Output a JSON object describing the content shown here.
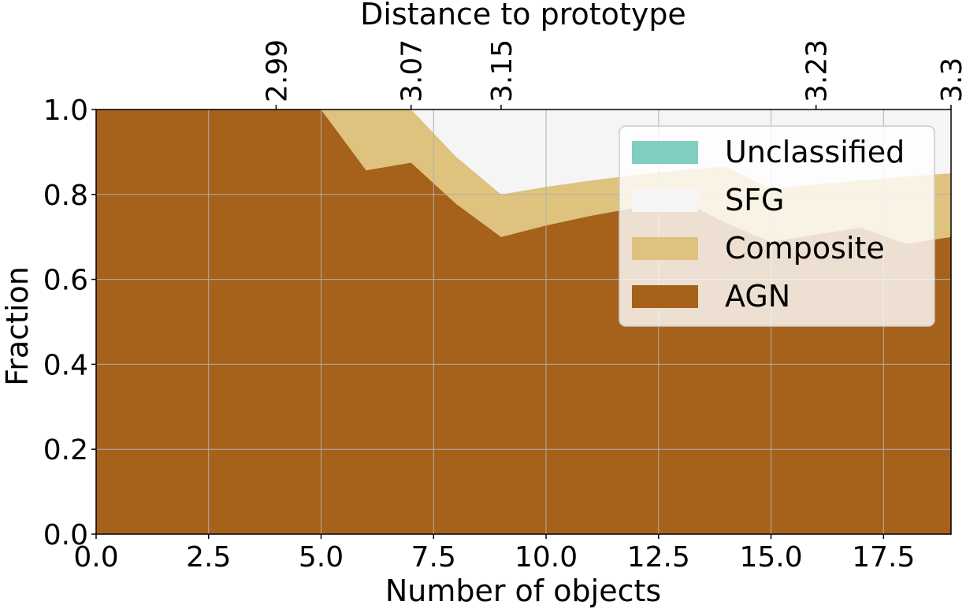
{
  "chart_data": {
    "type": "area",
    "stacked": true,
    "x": [
      0,
      1,
      2,
      3,
      4,
      5,
      6,
      7,
      8,
      9,
      10,
      11,
      12,
      13,
      14,
      15,
      16,
      17,
      18,
      19
    ],
    "series": [
      {
        "name": "AGN",
        "color": "#a6611a",
        "values": [
          1.0,
          1.0,
          1.0,
          1.0,
          1.0,
          1.0,
          0.857,
          0.875,
          0.778,
          0.7,
          0.727,
          0.75,
          0.769,
          0.786,
          0.733,
          0.688,
          0.706,
          0.722,
          0.684,
          0.7
        ]
      },
      {
        "name": "Composite",
        "color": "#dfc27d",
        "values": [
          0.0,
          0.0,
          0.0,
          0.0,
          0.0,
          0.0,
          0.143,
          0.125,
          0.111,
          0.1,
          0.091,
          0.083,
          0.077,
          0.071,
          0.133,
          0.125,
          0.118,
          0.111,
          0.158,
          0.15
        ]
      },
      {
        "name": "SFG",
        "color": "#f5f5f5",
        "values": [
          0.0,
          0.0,
          0.0,
          0.0,
          0.0,
          0.0,
          0.0,
          0.0,
          0.111,
          0.2,
          0.182,
          0.167,
          0.154,
          0.143,
          0.134,
          0.187,
          0.176,
          0.167,
          0.158,
          0.15
        ]
      },
      {
        "name": "Unclassified",
        "color": "#80cdc1",
        "values": [
          0,
          0,
          0,
          0,
          0,
          0,
          0,
          0,
          0,
          0,
          0,
          0,
          0,
          0,
          0,
          0,
          0,
          0,
          0,
          0
        ]
      }
    ],
    "xlim": [
      0,
      19
    ],
    "ylim": [
      0,
      1.0
    ],
    "xticks": [
      0.0,
      2.5,
      5.0,
      7.5,
      10.0,
      12.5,
      15.0,
      17.5
    ],
    "xtick_labels": [
      "0.0",
      "2.5",
      "5.0",
      "7.5",
      "10.0",
      "12.5",
      "15.0",
      "17.5"
    ],
    "yticks": [
      0.0,
      0.2,
      0.4,
      0.6,
      0.8,
      1.0
    ],
    "ytick_labels": [
      "0.0",
      "0.2",
      "0.4",
      "0.6",
      "0.8",
      "1.0"
    ],
    "top_axis": {
      "label": "Distance to prototype",
      "ticks": [
        {
          "x": 4,
          "label": "2.99"
        },
        {
          "x": 7,
          "label": "3.07"
        },
        {
          "x": 9,
          "label": "3.15"
        },
        {
          "x": 16,
          "label": "3.23"
        },
        {
          "x": 19,
          "label": "3.3"
        }
      ]
    },
    "xlabel": "Number of objects",
    "ylabel": "Fraction",
    "grid": true,
    "legend": {
      "placement": "upper-right",
      "order": [
        "Unclassified",
        "SFG",
        "Composite",
        "AGN"
      ]
    }
  }
}
